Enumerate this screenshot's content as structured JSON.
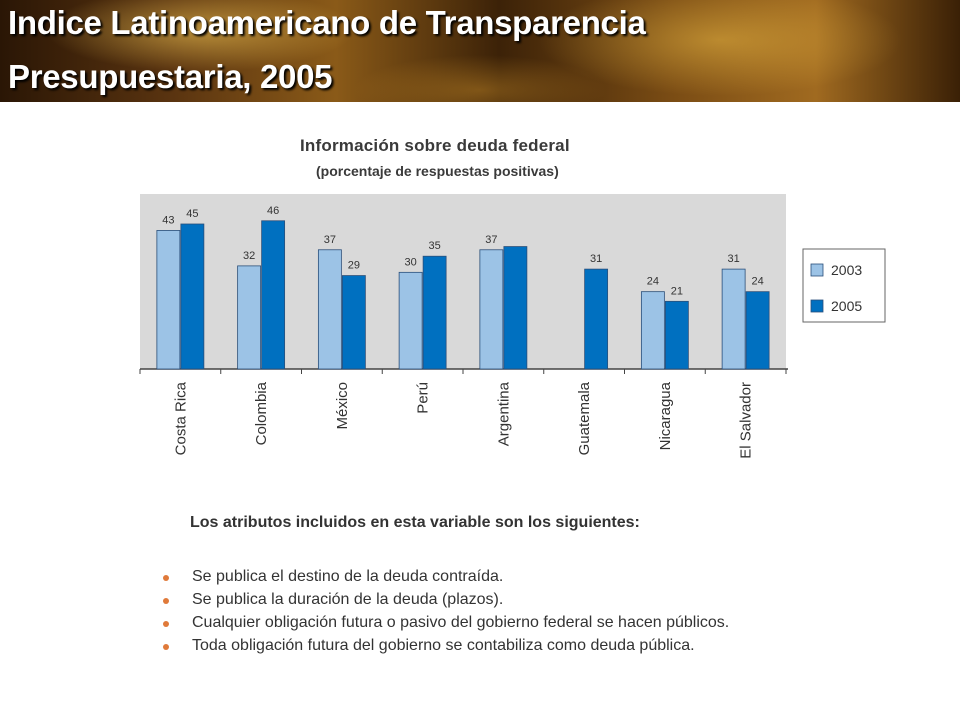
{
  "slide": {
    "title_line1": "Indice Latinoamericano de Transparencia",
    "title_line2": "Presupuestaria, 2005"
  },
  "chart_data": {
    "type": "bar",
    "title": "Información sobre deuda federal",
    "subtitle": "(porcentaje de respuestas positivas)",
    "categories": [
      "Costa Rica",
      "Colombia",
      "México",
      "Perú",
      "Argentina",
      "Guatemala",
      "Nicaragua",
      "El Salvador"
    ],
    "series": [
      {
        "name": "2003",
        "color": "#9cc3e6",
        "values": [
          43,
          32,
          37,
          30,
          37,
          null,
          24,
          31
        ]
      },
      {
        "name": "2005",
        "color": "#0070c0",
        "values": [
          45,
          46,
          29,
          35,
          38,
          31,
          21,
          24
        ]
      }
    ],
    "data_labels": [
      [
        "43",
        "32",
        "37",
        "30",
        "37",
        "",
        "24",
        "31"
      ],
      [
        "45",
        "46",
        "29",
        "35",
        "",
        "31",
        "21",
        "24"
      ]
    ],
    "ylim": [
      0,
      55
    ],
    "grid": false,
    "legend_position": "right",
    "plot_background": "#d9d9d9"
  },
  "attributes": {
    "heading": "Los atributos incluidos en esta variable son los siguientes:",
    "items": [
      "Se publica el destino de la deuda contraída.",
      "Se publica la duración de la deuda (plazos).",
      "Cualquier obligación futura o pasivo del gobierno federal se hacen públicos.",
      "Toda obligación futura del gobierno  se contabiliza como deuda pública."
    ]
  }
}
